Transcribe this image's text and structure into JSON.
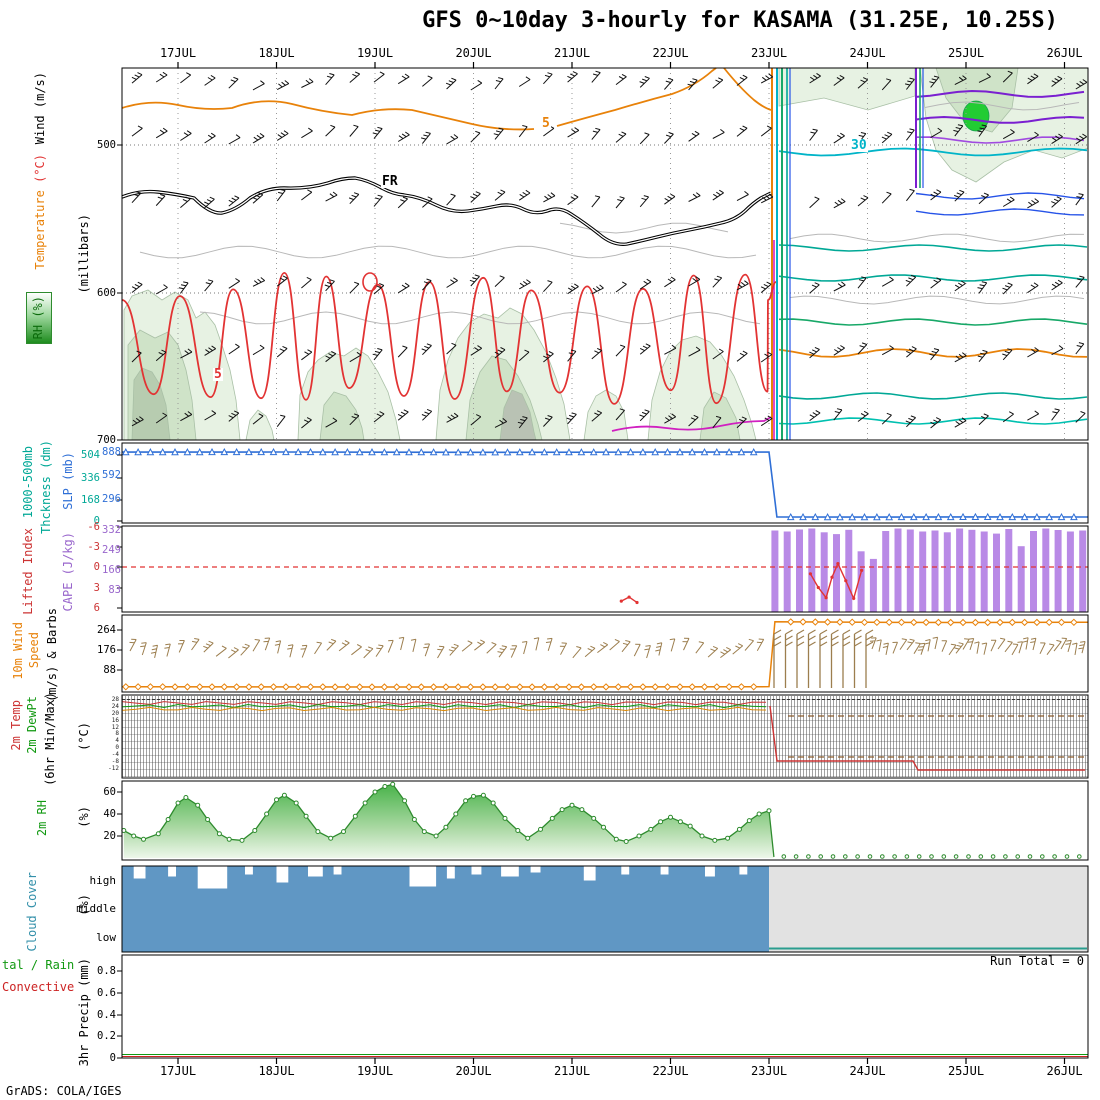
{
  "title": "GFS 0~10day 3-hourly for KASAMA (31.25E, 10.25S)",
  "footer": "GrADS: COLA/IGES",
  "x_axis": {
    "dates": [
      "17JUL",
      "18JUL",
      "19JUL",
      "20JUL",
      "21JUL",
      "22JUL",
      "23JUL",
      "24JUL",
      "25JUL",
      "26JUL"
    ]
  },
  "colors": {
    "orange": "#e8820a",
    "red": "#e23333",
    "cyan": "#00b4c8",
    "teal": "#00a896",
    "blue": "#2653e8",
    "slp_blue": "#2f6fd6",
    "green": "#18a050",
    "dark_green": "#119911",
    "purple": "#7a1fd0",
    "violet": "#a04ae0",
    "cape_purple": "#b98ae6",
    "magenta": "#d020c0",
    "barb_tan": "#9c7e4e",
    "cloud_blue": "#6097c4",
    "missing_gray": "#e2e2e2"
  },
  "panels": {
    "upper_air": {
      "label_wind": "Wind (m/s)",
      "label_temp": "Temperature ",
      "label_temp_unit": "(°C)",
      "label_rh": "RH (%)",
      "label_pressure": "(millibars)",
      "pressure_ticks": [
        "500",
        "600",
        "700"
      ],
      "contour_labels": {
        "temp_5": "5",
        "freezing": "FR",
        "rh_5": "5",
        "temp_30": "30"
      }
    },
    "slp": {
      "label_line1": "1000-500mb",
      "label_line2": "Thckness (dm)",
      "label_slp": "SLP (mb)",
      "thickness_ticks": [
        "504",
        "336",
        "168",
        "0"
      ],
      "slp_ticks": [
        "888",
        "592",
        "296"
      ]
    },
    "cape": {
      "label_li": "Lifted Index",
      "label_cape": "CAPE (J/kg)",
      "li_ticks": [
        "-6",
        "-3",
        "0",
        "3",
        "6"
      ],
      "cape_ticks": [
        "332",
        "249",
        "166",
        "83"
      ]
    },
    "wind10m": {
      "label1": "10m Wind",
      "label2": "Speed",
      "label3": "(m/s) & Barbs",
      "ticks": [
        "264",
        "176",
        "88"
      ]
    },
    "temp2m": {
      "label_temp": "2m Temp",
      "label_dew": "2m DewPt",
      "label_minmax": "(6hr Min/Max)",
      "label_unit": "(°C)",
      "ticks": [
        "28",
        "24",
        "20",
        "16",
        "12",
        "8",
        "4",
        "0",
        "-4",
        "-8",
        "-12"
      ]
    },
    "rh2m": {
      "label": "2m RH",
      "label_unit": "(%)",
      "ticks": [
        "60",
        "40",
        "20"
      ]
    },
    "cloud": {
      "label": "Cloud Cover",
      "label_unit": "(%)",
      "ticks": [
        "high",
        "middle",
        "low"
      ]
    },
    "precip": {
      "label_total": "tal / Rain",
      "label_conv": "Convective",
      "label_axis": "3hr Precip (mm)",
      "ticks": [
        "0.8",
        "0.6",
        "0.4",
        "0.2",
        "0"
      ],
      "run_total": "Run Total = 0"
    }
  },
  "chart_data": [
    {
      "id": "upper_air",
      "type": "contour",
      "ylabel": "(millibars)",
      "ylim": [
        450,
        700
      ],
      "x_domain_days": [
        16.43,
        26.24
      ],
      "pressure_ticks": [
        500,
        600,
        700
      ],
      "contour_labels": [
        {
          "text": "5",
          "color": "orange"
        },
        {
          "text": "FR",
          "color": "black"
        },
        {
          "text": "5",
          "color": "red"
        },
        {
          "text": "30",
          "color": "cyan"
        }
      ],
      "shading": "green RH shading in lower-left band and upper-right after 24.5JUL",
      "notes": "wind barbs at all pressure levels; forecast discontinuity at 23JUL (vertical color bundle) and 24.5JUL"
    },
    {
      "id": "slp_thickness",
      "type": "line",
      "ylim": [
        0,
        1000
      ],
      "series": [
        {
          "name": "SLP (mb)",
          "color": "#2f6fd6",
          "marker": "triangle",
          "points": [
            [
              16.43,
              888
            ],
            [
              18.0,
              890
            ],
            [
              20.0,
              886
            ],
            [
              22.0,
              889
            ],
            [
              23.0,
              888
            ],
            [
              23.08,
              75
            ],
            [
              24.0,
              74
            ],
            [
              25.0,
              76
            ],
            [
              26.24,
              75
            ]
          ]
        }
      ]
    },
    {
      "id": "cape_li",
      "type": "bar+line",
      "cape_ylim": [
        0,
        332
      ],
      "li_ylim": [
        -6,
        6
      ],
      "cape_bars": {
        "color": "#b98ae6",
        "start_day": 23.06,
        "step_day": 0.125,
        "values": [
          322,
          318,
          326,
          330,
          315,
          308,
          325,
          240,
          210,
          320,
          330,
          326,
          318,
          322,
          315,
          330,
          325,
          318,
          310,
          328,
          260,
          320,
          330,
          324,
          318,
          322
        ]
      },
      "li_zero_dashed": 0,
      "li_series": [
        [
          23.42,
          1.0
        ],
        [
          23.5,
          3.0
        ],
        [
          23.58,
          4.5
        ],
        [
          23.64,
          1.5
        ],
        [
          23.7,
          -0.5
        ],
        [
          23.78,
          2.0
        ],
        [
          23.86,
          4.6
        ],
        [
          23.94,
          0.5
        ]
      ],
      "li_extra": [
        [
          21.5,
          5.0
        ],
        [
          21.58,
          4.4
        ],
        [
          21.66,
          5.2
        ]
      ]
    },
    {
      "id": "wind10m",
      "type": "line+barbs",
      "ylim": [
        0,
        330
      ],
      "speed_series": [
        [
          16.43,
          14
        ],
        [
          20.0,
          13
        ],
        [
          22.9,
          14
        ],
        [
          23.0,
          15
        ],
        [
          23.06,
          300
        ],
        [
          24.0,
          298
        ],
        [
          25.0,
          297
        ],
        [
          26.24,
          298
        ]
      ],
      "marker": "diamond",
      "marker_step_day": 0.125
    },
    {
      "id": "temp2m",
      "type": "range",
      "note": "6hr min/max temperature and dewpoint bars, too dense to read individual values",
      "data_end_day": 23.0
    },
    {
      "id": "rh2m",
      "type": "area",
      "ylim": [
        0,
        70
      ],
      "points": [
        [
          16.45,
          25
        ],
        [
          16.55,
          20
        ],
        [
          16.65,
          17
        ],
        [
          16.8,
          22
        ],
        [
          16.9,
          35
        ],
        [
          17.0,
          50
        ],
        [
          17.08,
          55
        ],
        [
          17.2,
          48
        ],
        [
          17.3,
          35
        ],
        [
          17.42,
          22
        ],
        [
          17.52,
          17
        ],
        [
          17.65,
          16
        ],
        [
          17.78,
          25
        ],
        [
          17.9,
          40
        ],
        [
          18.0,
          53
        ],
        [
          18.08,
          57
        ],
        [
          18.2,
          50
        ],
        [
          18.3,
          38
        ],
        [
          18.42,
          24
        ],
        [
          18.55,
          18
        ],
        [
          18.68,
          24
        ],
        [
          18.8,
          38
        ],
        [
          18.9,
          50
        ],
        [
          19.0,
          60
        ],
        [
          19.1,
          65
        ],
        [
          19.18,
          67
        ],
        [
          19.3,
          52
        ],
        [
          19.4,
          35
        ],
        [
          19.5,
          24
        ],
        [
          19.62,
          20
        ],
        [
          19.72,
          28
        ],
        [
          19.82,
          40
        ],
        [
          19.92,
          52
        ],
        [
          20.0,
          56
        ],
        [
          20.1,
          57
        ],
        [
          20.2,
          50
        ],
        [
          20.32,
          36
        ],
        [
          20.45,
          25
        ],
        [
          20.55,
          18
        ],
        [
          20.68,
          26
        ],
        [
          20.8,
          36
        ],
        [
          20.9,
          44
        ],
        [
          21.0,
          48
        ],
        [
          21.1,
          44
        ],
        [
          21.22,
          36
        ],
        [
          21.32,
          28
        ],
        [
          21.45,
          17
        ],
        [
          21.55,
          15
        ],
        [
          21.68,
          20
        ],
        [
          21.8,
          26
        ],
        [
          21.9,
          33
        ],
        [
          22.0,
          37
        ],
        [
          22.1,
          33
        ],
        [
          22.2,
          29
        ],
        [
          22.32,
          20
        ],
        [
          22.45,
          16
        ],
        [
          22.58,
          18
        ],
        [
          22.7,
          26
        ],
        [
          22.8,
          34
        ],
        [
          22.9,
          40
        ],
        [
          23.0,
          43
        ]
      ],
      "zero_markers": {
        "start_day": 23.15,
        "end_day": 26.2,
        "step_day": 0.125,
        "value": 1
      }
    },
    {
      "id": "cloud",
      "type": "blocks",
      "rows": [
        "high",
        "middle",
        "low"
      ],
      "filled_region_days": [
        16.43,
        23.0
      ],
      "missing_region_days": [
        23.0,
        26.24
      ],
      "high_gaps": [
        [
          16.55,
          0.12,
          12
        ],
        [
          16.9,
          0.08,
          10
        ],
        [
          17.2,
          0.3,
          22
        ],
        [
          17.68,
          0.08,
          8
        ],
        [
          18.0,
          0.12,
          16
        ],
        [
          18.32,
          0.15,
          10
        ],
        [
          18.58,
          0.08,
          8
        ],
        [
          19.35,
          0.27,
          20
        ],
        [
          19.73,
          0.08,
          12
        ],
        [
          19.98,
          0.1,
          8
        ],
        [
          20.28,
          0.18,
          10
        ],
        [
          20.58,
          0.1,
          6
        ],
        [
          21.12,
          0.12,
          14
        ],
        [
          21.5,
          0.08,
          8
        ],
        [
          21.9,
          0.08,
          8
        ],
        [
          22.35,
          0.1,
          10
        ],
        [
          22.7,
          0.08,
          8
        ]
      ]
    },
    {
      "id": "precip",
      "type": "line",
      "ylim": [
        0,
        0.9
      ],
      "run_total": 0,
      "series": [
        {
          "name": "Total / Rain",
          "color": "#119911",
          "values_constant": 0
        },
        {
          "name": "Convective",
          "color": "#cc2222",
          "values_constant": 0
        }
      ]
    }
  ]
}
